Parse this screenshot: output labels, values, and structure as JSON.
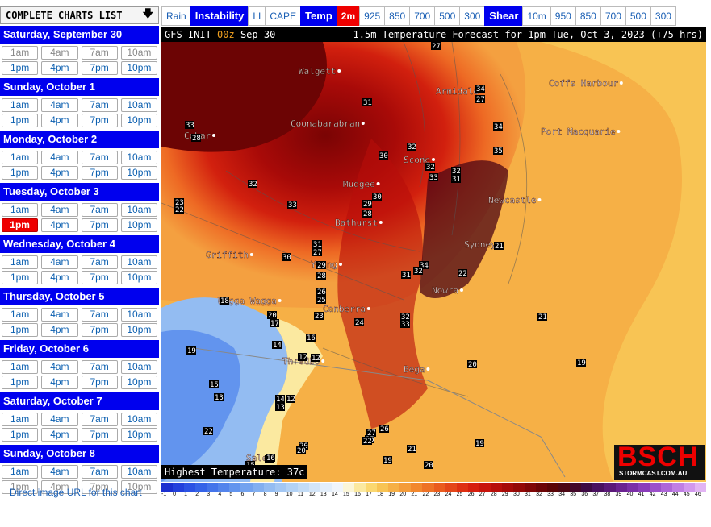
{
  "sidebar": {
    "header": "COMPLETE CHARTS LIST",
    "header_icon": "arrow-down-icon",
    "days": [
      {
        "title": "Saturday, September 30",
        "slots": [
          "1am",
          "4am",
          "7am",
          "10am",
          "1pm",
          "4pm",
          "7pm",
          "10pm"
        ]
      },
      {
        "title": "Sunday, October 1",
        "slots": [
          "1am",
          "4am",
          "7am",
          "10am",
          "1pm",
          "4pm",
          "7pm",
          "10pm"
        ]
      },
      {
        "title": "Monday, October 2",
        "slots": [
          "1am",
          "4am",
          "7am",
          "10am",
          "1pm",
          "4pm",
          "7pm",
          "10pm"
        ]
      },
      {
        "title": "Tuesday, October 3",
        "slots": [
          "1am",
          "4am",
          "7am",
          "10am",
          "1pm",
          "4pm",
          "7pm",
          "10pm"
        ]
      },
      {
        "title": "Wednesday, October 4",
        "slots": [
          "1am",
          "4am",
          "7am",
          "10am",
          "1pm",
          "4pm",
          "7pm",
          "10pm"
        ]
      },
      {
        "title": "Thursday, October 5",
        "slots": [
          "1am",
          "4am",
          "7am",
          "10am",
          "1pm",
          "4pm",
          "7pm",
          "10pm"
        ]
      },
      {
        "title": "Friday, October 6",
        "slots": [
          "1am",
          "4am",
          "7am",
          "10am",
          "1pm",
          "4pm",
          "7pm",
          "10pm"
        ]
      },
      {
        "title": "Saturday, October 7",
        "slots": [
          "1am",
          "4am",
          "7am",
          "10am",
          "1pm",
          "4pm",
          "7pm",
          "10pm"
        ]
      },
      {
        "title": "Sunday, October 8",
        "slots": [
          "1am",
          "4am",
          "7am",
          "10am",
          "1pm",
          "4pm",
          "7pm",
          "10pm"
        ]
      }
    ],
    "active": {
      "day": 3,
      "slot": 4
    },
    "past_first_day": true,
    "last_day_unavailable_from": 4,
    "direct_link": "Direct image URL for this chart"
  },
  "topbar": [
    {
      "label": "Rain",
      "kind": "link"
    },
    {
      "label": "Instability",
      "kind": "group"
    },
    {
      "label": "LI",
      "kind": "link"
    },
    {
      "label": "CAPE",
      "kind": "link"
    },
    {
      "label": "Temp",
      "kind": "group"
    },
    {
      "label": "2m",
      "kind": "selected"
    },
    {
      "label": "925",
      "kind": "link"
    },
    {
      "label": "850",
      "kind": "link"
    },
    {
      "label": "700",
      "kind": "link"
    },
    {
      "label": "500",
      "kind": "link"
    },
    {
      "label": "300",
      "kind": "link"
    },
    {
      "label": "Shear",
      "kind": "group"
    },
    {
      "label": "10m",
      "kind": "link"
    },
    {
      "label": "950",
      "kind": "link"
    },
    {
      "label": "850",
      "kind": "link"
    },
    {
      "label": "700",
      "kind": "link"
    },
    {
      "label": "500",
      "kind": "link"
    },
    {
      "label": "300",
      "kind": "link"
    }
  ],
  "map": {
    "init_prefix": "GFS INIT",
    "init_run": "00z",
    "init_date": "Sep 30",
    "forecast_title": "1.5m Temperature Forecast for 1pm Tue, Oct 3, 2023 (+75 hrs)",
    "max_temp": "Highest Temperature: 37c",
    "logo_big": "BSCH",
    "logo_small": "STORMCAST.COM.AU",
    "cities": [
      "Walgett",
      "Armidale",
      "Coffs Harbour",
      "Coonabarabran",
      "Port Macquarie",
      "Cobar",
      "Scone",
      "Mudgee",
      "Newcastle",
      "Bathurst",
      "Sydney",
      "Griffith",
      "Young",
      "Nowra",
      "Wagga Wagga",
      "Canberra",
      "Thredbo",
      "Bega",
      "Sale"
    ],
    "values": [
      "27",
      "31",
      "34",
      "33",
      "27",
      "28",
      "34",
      "30",
      "32",
      "35",
      "32",
      "33",
      "31",
      "32",
      "30",
      "29",
      "28",
      "23",
      "22",
      "33",
      "32",
      "31",
      "27",
      "30",
      "29",
      "28",
      "21",
      "34",
      "32",
      "31",
      "22",
      "26",
      "25",
      "18",
      "20",
      "17",
      "23",
      "24",
      "32",
      "33",
      "21",
      "19",
      "16",
      "14",
      "15",
      "19",
      "12",
      "12",
      "13",
      "14",
      "12",
      "13",
      "22",
      "20",
      "18",
      "20",
      "27",
      "25",
      "26",
      "19",
      "22",
      "21",
      "19",
      "20",
      "15",
      "16",
      "20",
      "18"
    ]
  },
  "legend": {
    "labels": [
      "-1",
      "0",
      "1",
      "2",
      "3",
      "4",
      "5",
      "6",
      "7",
      "8",
      "9",
      "10",
      "11",
      "12",
      "13",
      "14",
      "15",
      "16",
      "17",
      "18",
      "19",
      "20",
      "21",
      "22",
      "23",
      "24",
      "25",
      "26",
      "27",
      "28",
      "29",
      "30",
      "31",
      "32",
      "33",
      "34",
      "35",
      "36",
      "37",
      "38",
      "39",
      "40",
      "41",
      "42",
      "43",
      "44",
      "45",
      "46"
    ],
    "colors": [
      "#1a2fd0",
      "#2240dc",
      "#2b52e4",
      "#3563e8",
      "#4474ea",
      "#5384ec",
      "#6294ee",
      "#72a2ef",
      "#82aff0",
      "#93bcf2",
      "#a3c7f3",
      "#b3d2f5",
      "#c3dcf6",
      "#d3e5f8",
      "#e3eefa",
      "#f0f5fb",
      "#fbf6d8",
      "#fbe9a0",
      "#fbd870",
      "#f8c454",
      "#f6b046",
      "#f49c3a",
      "#f2882e",
      "#ee7226",
      "#ea5c1e",
      "#e44618",
      "#de3012",
      "#d61e0e",
      "#c8140c",
      "#b80e0a",
      "#a60a08",
      "#940806",
      "#800606",
      "#6c0406",
      "#5a0406",
      "#4c0614",
      "#44082a",
      "#3e0a44",
      "#4a1060",
      "#5a1878",
      "#6a2290",
      "#7a2ea6",
      "#8a3cba",
      "#9c50ca",
      "#ae66d8",
      "#c07ee4",
      "#d298ee",
      "#e2b4f4"
    ]
  }
}
